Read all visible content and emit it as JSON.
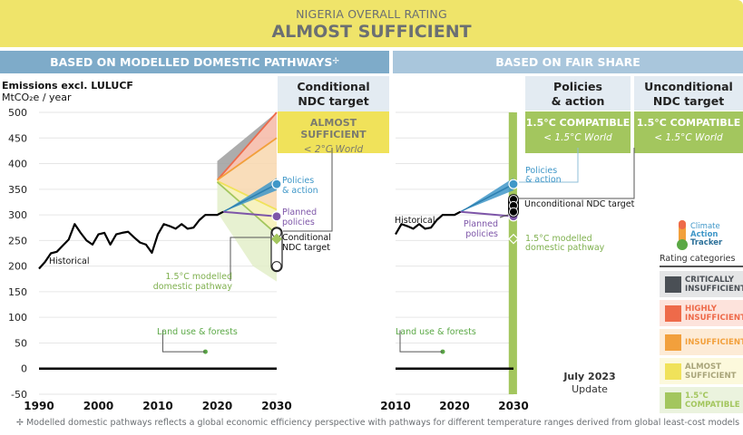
{
  "header": {
    "subtitle": "NIGERIA OVERALL RATING",
    "rating": "ALMOST SUFFICIENT"
  },
  "sections": {
    "left": "BASED ON MODELLED DOMESTIC PATHWAYS",
    "left_marker": "✢",
    "right": "BASED ON FAIR SHARE"
  },
  "columns": {
    "conditional": {
      "title_1": "Conditional",
      "title_2": "NDC target",
      "rating": "ALMOST SUFFICIENT",
      "world": "< 2°C World"
    },
    "policies": {
      "title_1": "Policies",
      "title_2": "& action",
      "rating": "1.5°C COMPATIBLE",
      "world": "< 1.5°C World"
    },
    "unconditional": {
      "title_1": "Unconditional",
      "title_2": "NDC target",
      "rating": "1.5°C COMPATIBLE",
      "world": "< 1.5°C World"
    }
  },
  "colors": {
    "critically": "#4a4f55",
    "highly": "#ee6a4a",
    "insufficient": "#f2a03c",
    "almost": "#f0e25a",
    "compatible": "#a3c65e",
    "policies": "#3f97c8",
    "planned": "#7d55a8",
    "historical": "#000000",
    "land_use": "#5aa845"
  },
  "legend": {
    "logo": [
      "Climate",
      "Action",
      "Tracker"
    ],
    "title": "Rating categories",
    "items": [
      {
        "label_1": "CRITICALLY",
        "label_2": "INSUFFICIENT",
        "color": "#4a4f55",
        "bg": "#e4e5e6",
        "text": "#4a4f55"
      },
      {
        "label_1": "HIGHLY",
        "label_2": "INSUFFICIENT",
        "color": "#ee6a4a",
        "bg": "#fde3dc",
        "text": "#ee6a4a"
      },
      {
        "label_1": "INSUFFICIENT",
        "label_2": "",
        "color": "#f2a03c",
        "bg": "#fdebd6",
        "text": "#f2a03c"
      },
      {
        "label_1": "ALMOST",
        "label_2": "SUFFICIENT",
        "color": "#f0e25a",
        "bg": "#fcf9dc",
        "text": "#a9a57a"
      },
      {
        "label_1": "1.5°C",
        "label_2": "COMPATIBLE",
        "color": "#a3c65e",
        "bg": "#ebf3de",
        "text": "#a3c65e"
      }
    ]
  },
  "update": {
    "line1": "July 2023",
    "line2": "Update"
  },
  "footnote": "✢  Modelled domestic pathways reflects a global economic efficiency perspective with pathways for different temperature ranges derived from global least-cost models",
  "chart_data": [
    {
      "type": "line",
      "title": "Based on modelled domestic pathways",
      "ylabel": "Emissions excl. LULUCF",
      "yunit": "MtCO₂e / year",
      "ylim": [
        -50,
        500
      ],
      "yticks": [
        500,
        450,
        400,
        350,
        300,
        250,
        200,
        150,
        100,
        50,
        0,
        -50
      ],
      "xlim": [
        1990,
        2030
      ],
      "xticks": [
        1990,
        2000,
        2010,
        2020,
        2030
      ],
      "grid": true,
      "historical": {
        "label": "Historical",
        "x": [
          1990,
          1991,
          1992,
          1993,
          1994,
          1995,
          1996,
          1997,
          1998,
          1999,
          2000,
          2001,
          2002,
          2003,
          2004,
          2005,
          2006,
          2007,
          2008,
          2009,
          2010,
          2011,
          2012,
          2013,
          2014,
          2015,
          2016,
          2017,
          2018,
          2019,
          2020,
          2021
        ],
        "y": [
          195,
          208,
          225,
          228,
          240,
          252,
          282,
          265,
          250,
          242,
          262,
          265,
          242,
          262,
          265,
          267,
          256,
          246,
          242,
          226,
          262,
          282,
          278,
          273,
          282,
          273,
          275,
          290,
          300,
          300,
          300,
          306
        ]
      },
      "range_bands": [
        {
          "name": "Critically insufficient",
          "color": "#9e9e9e",
          "x": [
            2020,
            2030
          ],
          "lower": [
            370,
            500
          ],
          "upper": [
            405,
            500
          ]
        },
        {
          "name": "Highly insufficient",
          "color": "#f6b8a6",
          "x": [
            2020,
            2030
          ],
          "lower": [
            368,
            450
          ],
          "upper": [
            370,
            500
          ]
        },
        {
          "name": "Insufficient",
          "color": "#f8d7ae",
          "x": [
            2020,
            2030
          ],
          "lower": [
            366,
            310
          ],
          "upper": [
            368,
            450
          ]
        },
        {
          "name": "Almost sufficient",
          "color": "#f6f0b4",
          "x": [
            2020,
            2030
          ],
          "lower": [
            364,
            262
          ],
          "upper": [
            366,
            310
          ]
        },
        {
          "name": "1.5°C compatible",
          "color": "#e3eec9",
          "x": [
            2020,
            2026,
            2030
          ],
          "lower": [
            305,
            200,
            170
          ],
          "upper": [
            364,
            300,
            262
          ]
        }
      ],
      "boundary_lines": [
        {
          "name": "Critically/Highly boundary",
          "color": "#ee6a4a",
          "x": [
            2020,
            2030
          ],
          "y": [
            368,
            500
          ]
        },
        {
          "name": "Highly/Insufficient boundary",
          "color": "#f2a03c",
          "x": [
            2020,
            2030
          ],
          "y": [
            368,
            450
          ]
        },
        {
          "name": "Insufficient/Almost boundary",
          "color": "#f0e25a",
          "x": [
            2020,
            2030
          ],
          "y": [
            366,
            310
          ]
        },
        {
          "name": "Almost/1.5C boundary",
          "color": "#a3c65e",
          "x": [
            2020,
            2030
          ],
          "y": [
            364,
            262
          ]
        }
      ],
      "policies_action": {
        "label_1": "Policies",
        "label_2": "& action",
        "x": [
          2021,
          2030
        ],
        "y": [
          306,
          360
        ],
        "range_2030": [
          348,
          372
        ]
      },
      "planned_policies": {
        "label_1": "Planned",
        "label_2": "policies",
        "x": [
          2021,
          2030
        ],
        "y": [
          306,
          297
        ]
      },
      "conditional_ndc": {
        "label_1": "Conditional",
        "label_2": "NDC target",
        "range": [
          200,
          265
        ],
        "diamond": 253
      },
      "pathway_label": {
        "line1": "1.5°C modelled",
        "line2": "domestic pathway"
      },
      "land_use": {
        "label": "Land use & forests",
        "x": 2018,
        "y": 33
      },
      "zero_line": 0
    },
    {
      "type": "line",
      "title": "Based on fair share",
      "ylim": [
        -50,
        500
      ],
      "xlim": [
        2010,
        2030
      ],
      "xticks": [
        2010,
        2020,
        2030
      ],
      "grid": true,
      "historical": {
        "label": "Historical",
        "x": [
          2010,
          2011,
          2012,
          2013,
          2014,
          2015,
          2016,
          2017,
          2018,
          2019,
          2020,
          2021
        ],
        "y": [
          262,
          282,
          278,
          273,
          282,
          273,
          275,
          290,
          300,
          300,
          300,
          306
        ]
      },
      "fair_share_band": {
        "name": "1.5°C compatible",
        "color": "#a3c65e",
        "x_range": [
          2029.2,
          2030.6
        ],
        "ylim": [
          -50,
          500
        ]
      },
      "policies_action": {
        "label_1": "Policies",
        "label_2": "& action",
        "x": [
          2021,
          2030
        ],
        "y": [
          306,
          360
        ],
        "range_2030": [
          348,
          372
        ]
      },
      "planned_policies": {
        "label_1": "Planned",
        "label_2": "policies",
        "x": [
          2021,
          2030
        ],
        "y": [
          306,
          297
        ]
      },
      "unconditional_ndc": {
        "label": "Unconditional NDC target",
        "points": [
          330,
          318,
          306
        ]
      },
      "pathway_marker": {
        "line1": "1.5°C modelled",
        "line2": "domestic pathway",
        "y": 253
      },
      "land_use": {
        "label": "Land use & forests",
        "x": 2018,
        "y": 33
      },
      "zero_line": 0
    }
  ]
}
